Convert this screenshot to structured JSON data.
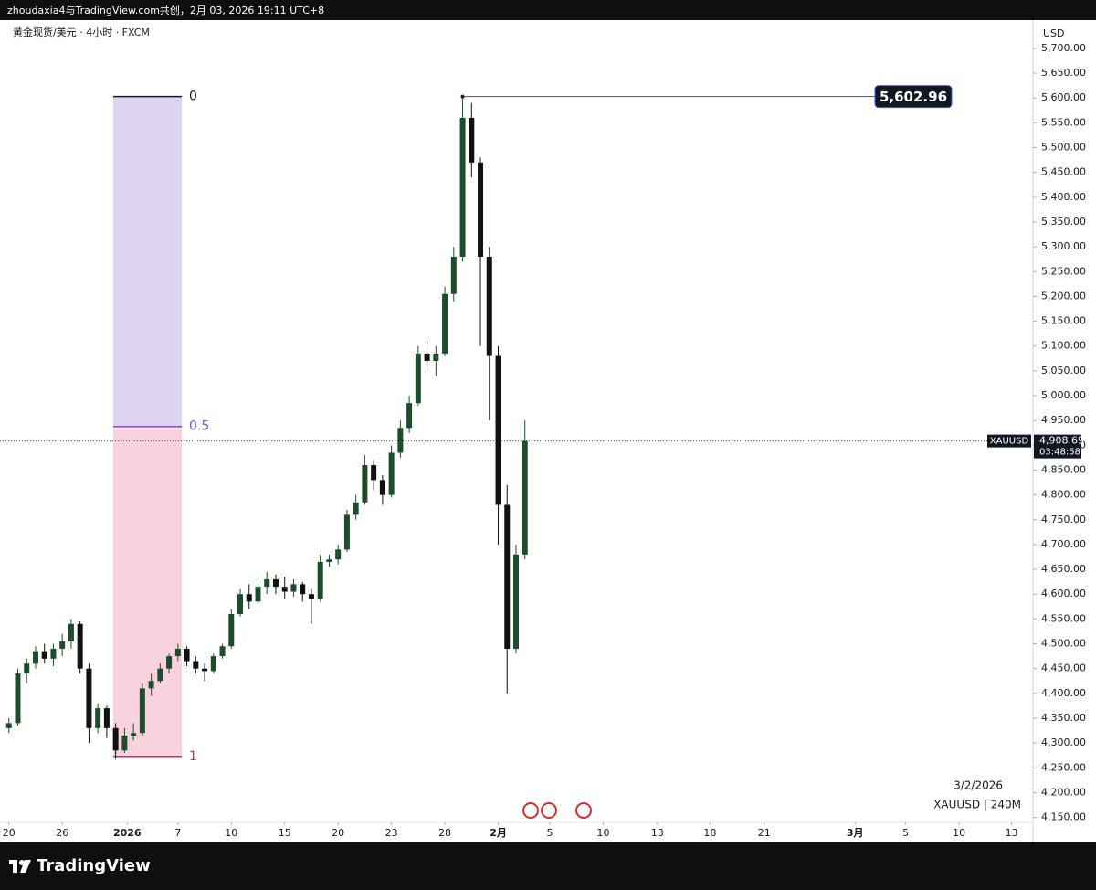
{
  "header": {
    "text": "zhoudaxia4与TradingView.com共创，2月 03, 2026 19:11 UTC+8"
  },
  "footer": {
    "brand": "TradingView"
  },
  "chart_data": {
    "type": "candlestick",
    "title": "黄金现货/美元 · 4小时 · FXCM",
    "currency": "USD",
    "x": [
      0,
      1,
      2,
      3,
      4,
      5,
      6,
      7,
      8,
      9,
      10,
      11,
      12,
      13,
      14,
      15,
      16,
      17,
      18,
      19,
      20,
      21,
      22,
      23,
      24,
      25,
      26,
      27,
      28,
      29,
      30,
      31,
      32,
      33,
      34,
      35,
      36,
      37,
      38,
      39,
      40,
      41,
      42,
      43,
      44,
      45,
      46,
      47,
      48,
      49,
      50,
      51,
      52,
      53,
      54,
      55,
      56,
      57,
      58
    ],
    "open": [
      4330,
      4340,
      4440,
      4460,
      4485,
      4470,
      4490,
      4505,
      4540,
      4450,
      4330,
      4370,
      4330,
      4285,
      4315,
      4320,
      4410,
      4425,
      4450,
      4475,
      4490,
      4465,
      4450,
      4445,
      4475,
      4495,
      4560,
      4600,
      4585,
      4615,
      4630,
      4615,
      4605,
      4620,
      4600,
      4590,
      4665,
      4670,
      4690,
      4760,
      4785,
      4860,
      4830,
      4800,
      4885,
      4935,
      4985,
      5085,
      5070,
      5085,
      5205,
      5280,
      5560,
      5470,
      5280,
      5080,
      4780,
      4490,
      4680
    ],
    "high": [
      4350,
      4450,
      4470,
      4495,
      4500,
      4500,
      4520,
      4550,
      4545,
      4460,
      4380,
      4375,
      4340,
      4330,
      4340,
      4420,
      4440,
      4460,
      4480,
      4500,
      4495,
      4475,
      4460,
      4480,
      4500,
      4570,
      4610,
      4620,
      4630,
      4645,
      4640,
      4635,
      4630,
      4625,
      4610,
      4680,
      4680,
      4700,
      4770,
      4800,
      4880,
      4870,
      4840,
      4900,
      4950,
      5000,
      5100,
      5110,
      5100,
      5220,
      5300,
      5602.96,
      5590,
      5480,
      5300,
      5100,
      4820,
      4700,
      4950
    ],
    "low": [
      4320,
      4335,
      4420,
      4450,
      4460,
      4455,
      4475,
      4490,
      4440,
      4300,
      4320,
      4310,
      4268,
      4280,
      4305,
      4315,
      4395,
      4420,
      4440,
      4465,
      4455,
      4440,
      4425,
      4440,
      4470,
      4490,
      4555,
      4570,
      4580,
      4600,
      4600,
      4590,
      4595,
      4585,
      4540,
      4585,
      4655,
      4660,
      4685,
      4750,
      4780,
      4810,
      4780,
      4795,
      4875,
      4925,
      4980,
      5050,
      5040,
      5080,
      5190,
      5270,
      5440,
      5100,
      4950,
      4700,
      4400,
      4480,
      4670
    ],
    "close": [
      4340,
      4440,
      4460,
      4485,
      4470,
      4490,
      4505,
      4540,
      4450,
      4330,
      4370,
      4330,
      4285,
      4315,
      4320,
      4410,
      4425,
      4450,
      4475,
      4490,
      4465,
      4450,
      4445,
      4475,
      4495,
      4560,
      4600,
      4585,
      4615,
      4630,
      4615,
      4605,
      4620,
      4600,
      4590,
      4665,
      4670,
      4690,
      4760,
      4785,
      4860,
      4830,
      4800,
      4885,
      4935,
      4985,
      5085,
      5070,
      5085,
      5205,
      5280,
      5560,
      5470,
      5280,
      5080,
      4780,
      4490,
      4680,
      4908.69
    ],
    "up_color": "#1e4d2b",
    "down_color": "#111111",
    "xlim": [
      -1,
      115
    ],
    "ylim": [
      4140,
      5757
    ],
    "xticks": [
      {
        "value": 0,
        "label": "20"
      },
      {
        "value": 6,
        "label": "26"
      },
      {
        "value": 13.3,
        "label": "2026"
      },
      {
        "value": 19,
        "label": "7"
      },
      {
        "value": 25,
        "label": "10"
      },
      {
        "value": 31,
        "label": "15"
      },
      {
        "value": 37,
        "label": "20"
      },
      {
        "value": 43,
        "label": "23"
      },
      {
        "value": 49,
        "label": "28"
      },
      {
        "value": 55,
        "label": "2月"
      },
      {
        "value": 60.8,
        "label": "5"
      },
      {
        "value": 66.8,
        "label": "10"
      },
      {
        "value": 72.9,
        "label": "13"
      },
      {
        "value": 78.8,
        "label": "18"
      },
      {
        "value": 84.9,
        "label": "21"
      },
      {
        "value": 95.1,
        "label": "3月"
      },
      {
        "value": 100.8,
        "label": "5"
      },
      {
        "value": 106.8,
        "label": "10"
      },
      {
        "value": 112.7,
        "label": "13"
      }
    ],
    "yticks": [
      {
        "value": 4150,
        "label": "4,150.00"
      },
      {
        "value": 4200,
        "label": "4,200.00"
      },
      {
        "value": 4250,
        "label": "4,250.00"
      },
      {
        "value": 4300,
        "label": "4,300.00"
      },
      {
        "value": 4350,
        "label": "4,350.00"
      },
      {
        "value": 4400,
        "label": "4,400.00"
      },
      {
        "value": 4450,
        "label": "4,450.00"
      },
      {
        "value": 4500,
        "label": "4,500.00"
      },
      {
        "value": 4550,
        "label": "4,550.00"
      },
      {
        "value": 4600,
        "label": "4,600.00"
      },
      {
        "value": 4650,
        "label": "4,650.00"
      },
      {
        "value": 4700,
        "label": "4,700.00"
      },
      {
        "value": 4750,
        "label": "4,750.00"
      },
      {
        "value": 4800,
        "label": "4,800.00"
      },
      {
        "value": 4850,
        "label": "4,850.00"
      },
      {
        "value": 4900,
        "label": "4,900.00"
      },
      {
        "value": 4950,
        "label": "4,950.00"
      },
      {
        "value": 5000,
        "label": "5,000.00"
      },
      {
        "value": 5050,
        "label": "5,050.00"
      },
      {
        "value": 5100,
        "label": "5,100.00"
      },
      {
        "value": 5150,
        "label": "5,150.00"
      },
      {
        "value": 5200,
        "label": "5,200.00"
      },
      {
        "value": 5250,
        "label": "5,250.00"
      },
      {
        "value": 5300,
        "label": "5,300.00"
      },
      {
        "value": 5350,
        "label": "5,350.00"
      },
      {
        "value": 5400,
        "label": "5,400.00"
      },
      {
        "value": 5450,
        "label": "5,450.00"
      },
      {
        "value": 5500,
        "label": "5,500.00"
      },
      {
        "value": 5550,
        "label": "5,550.00"
      },
      {
        "value": 5600,
        "label": "5,600.00"
      },
      {
        "value": 5650,
        "label": "5,650.00"
      },
      {
        "value": 5700,
        "label": "5,700.00"
      }
    ],
    "grid": false,
    "fib_levels": [
      {
        "level": 0,
        "price": 5602.96,
        "color": "#131722",
        "fill": "#ddd5ef"
      },
      {
        "level": 0.5,
        "price": 4937.98,
        "color": "#7e57c2",
        "fill": "#f9d2df"
      },
      {
        "level": 1,
        "price": 4273,
        "color": "#e91e63"
      }
    ],
    "high_marker": {
      "x": 51,
      "value": 5602.96,
      "label": "5,602.96"
    },
    "last_price": {
      "symbol": "XAUUSD",
      "value": 4908.69,
      "label": "4,908.69",
      "countdown": "03:48:58"
    },
    "date_note": "3/2/2026",
    "interval_note": "XAUUSD | 240M"
  }
}
